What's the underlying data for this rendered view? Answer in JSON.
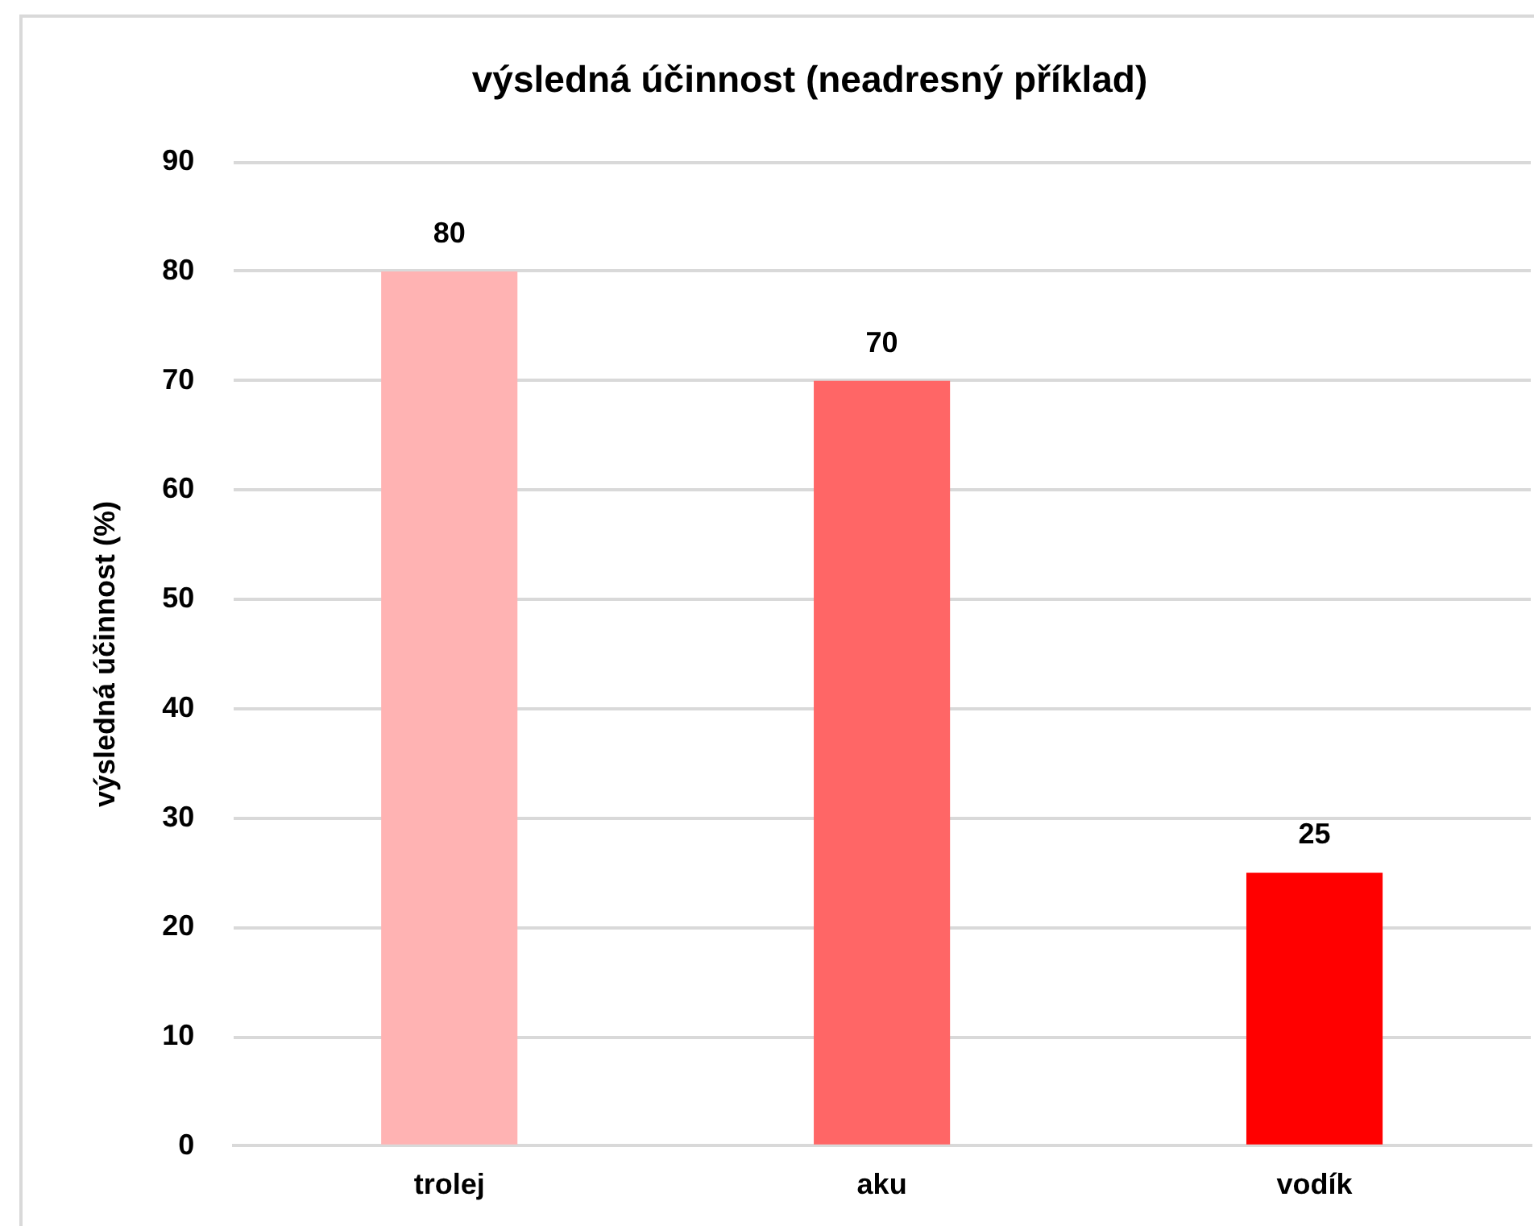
{
  "chart_data": {
    "type": "bar",
    "title": "výsledná účinnost (neadresný příklad)",
    "ylabel": "výsledná účinnost (%)",
    "categories": [
      "trolej",
      "aku",
      "vodík"
    ],
    "values": [
      80,
      70,
      25
    ],
    "colors": [
      "#ffb3b3",
      "#ff6666",
      "#ff0000"
    ],
    "ylim": [
      0,
      90
    ],
    "yticks": [
      0,
      10,
      20,
      30,
      40,
      50,
      60,
      70,
      80,
      90
    ],
    "grid": "y",
    "data_labels": true
  }
}
